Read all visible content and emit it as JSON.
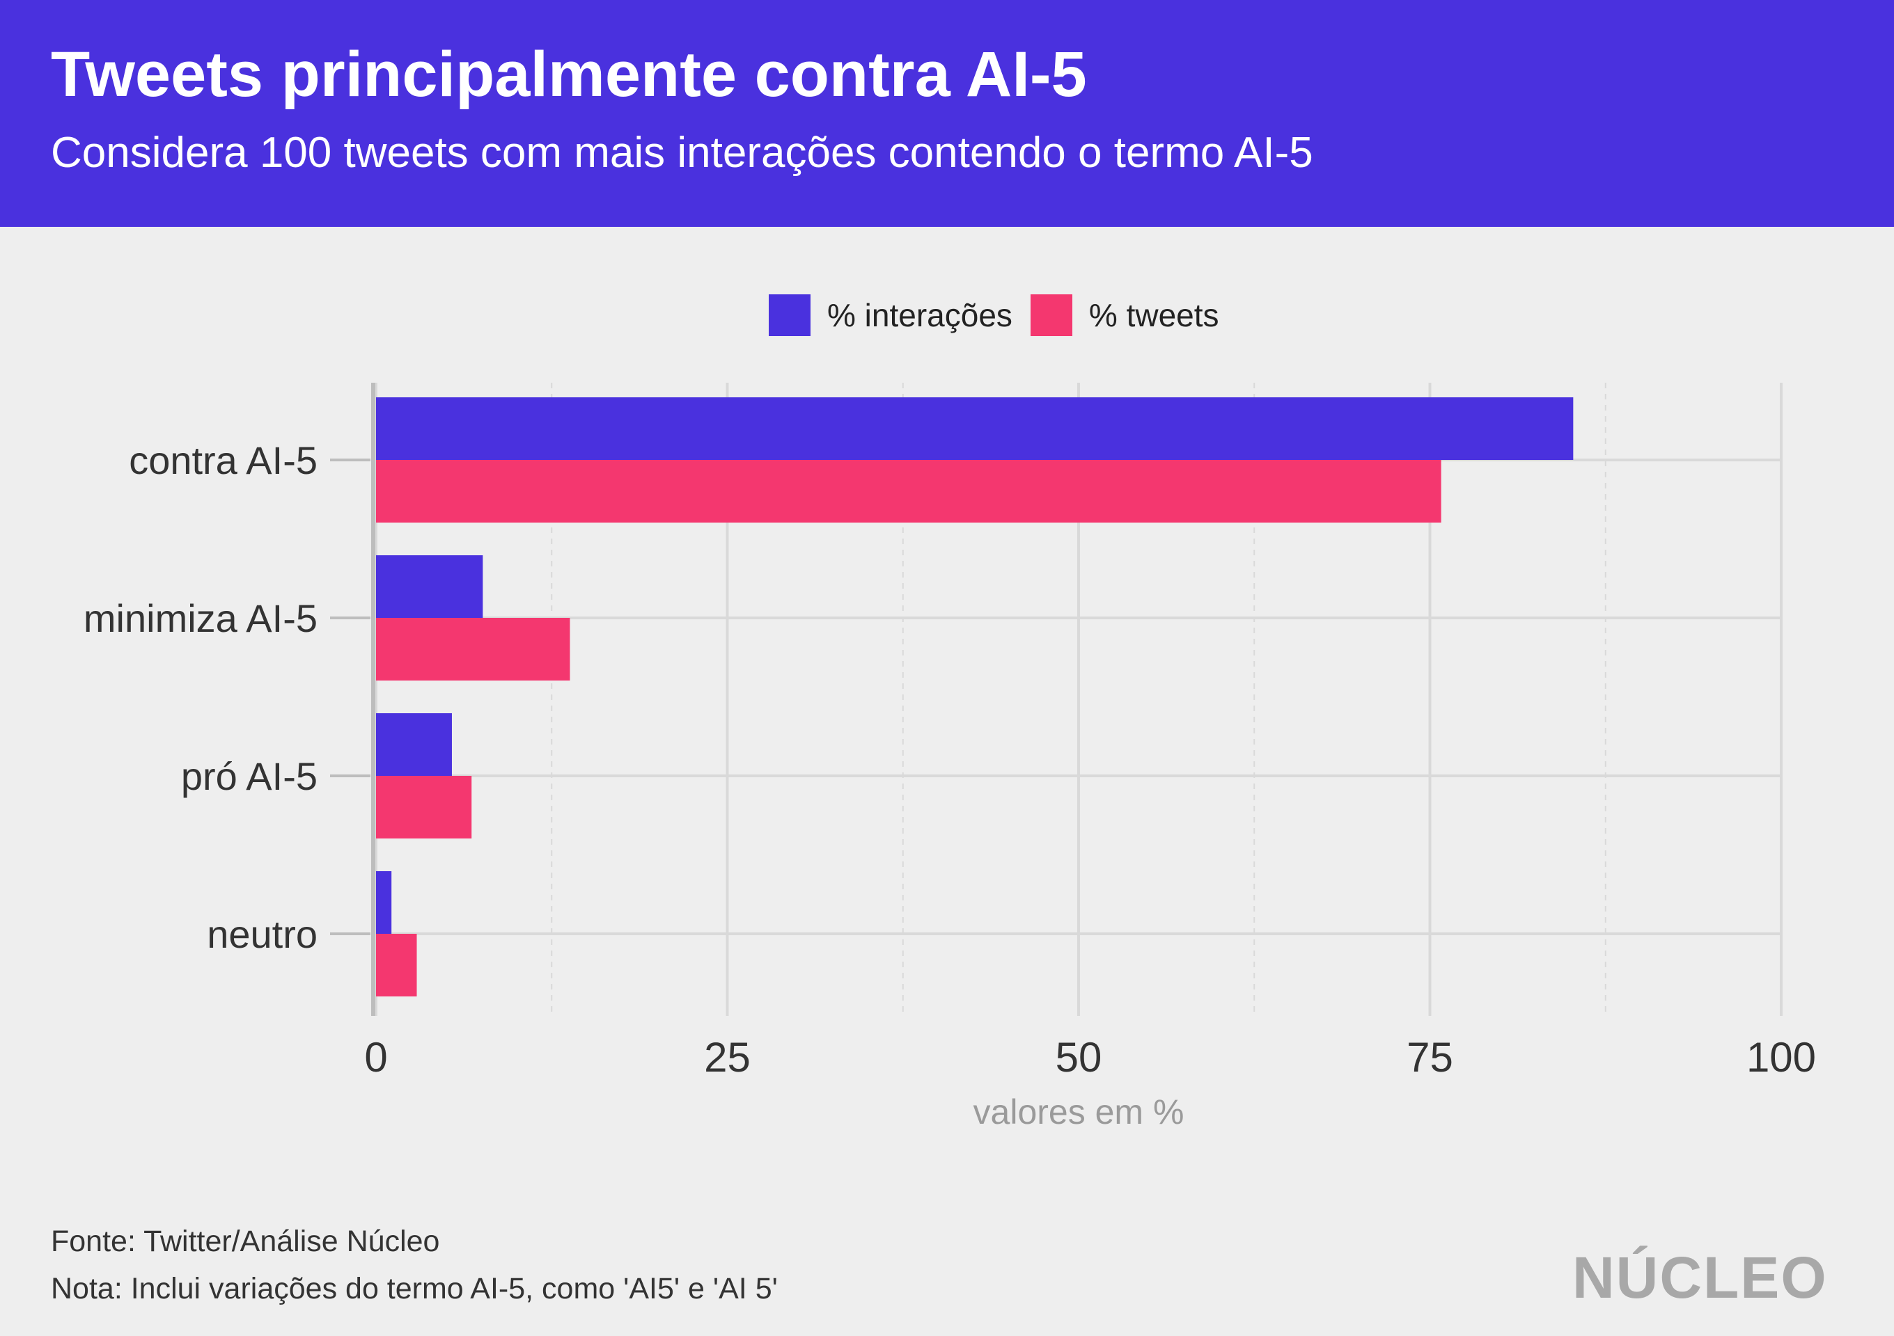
{
  "header": {
    "title": "Tweets principalmente contra AI-5",
    "subtitle": "Considera 100 tweets com mais interações contendo o termo AI-5",
    "background": "#4a31de"
  },
  "colors": {
    "interacoes": "#4a31de",
    "tweets": "#f4376f",
    "grid": "#d9d9d9",
    "axis_label": "#9a9a9a"
  },
  "chart_data": {
    "type": "bar",
    "orientation": "horizontal",
    "categories": [
      "contra AI-5",
      "minimiza AI-5",
      "pró AI-5",
      "neutro"
    ],
    "series": [
      {
        "name": "% interações",
        "values": [
          85.2,
          7.6,
          5.4,
          1.1
        ]
      },
      {
        "name": "% tweets",
        "values": [
          75.8,
          13.8,
          6.8,
          2.9
        ]
      }
    ],
    "xlabel": "valores em %",
    "ylabel": "",
    "xlim": [
      0,
      100
    ],
    "xticks": [
      "0",
      "25",
      "50",
      "75",
      "100"
    ],
    "grid": true,
    "legend": "top-center"
  },
  "footer": {
    "source": "Fonte: Twitter/Análise Núcleo",
    "note": "Nota: Inclui variações do termo AI-5, como 'AI5' e 'AI 5'",
    "logo": "NÚCLEO"
  }
}
